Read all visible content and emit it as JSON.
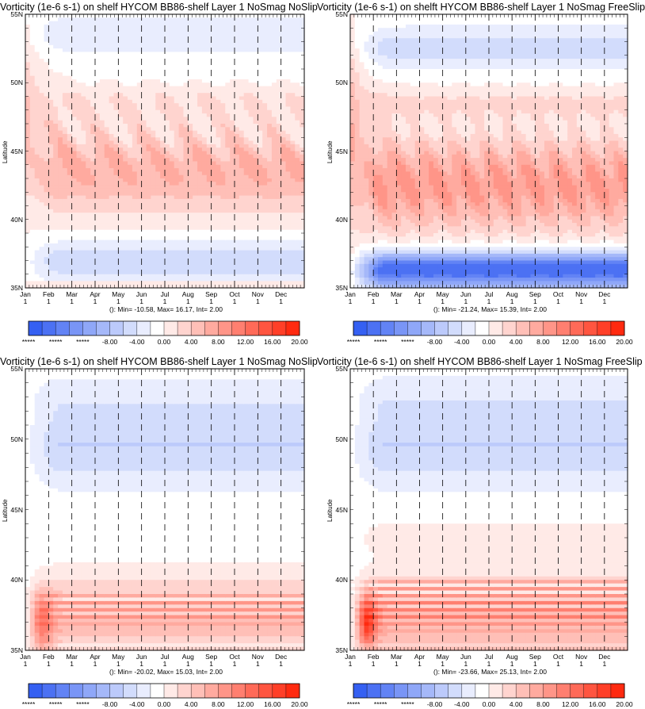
{
  "chart_data": [
    {
      "type": "heatmap",
      "title": "Vorticity (1e-6 s-1) on shelf HYCOM BB86-shelf Layer 1 NoSmag NoSlip",
      "ylabel": "Latitude",
      "xticks": [
        "Jan\n1",
        "Feb\n1",
        "Mar\n1",
        "Apr\n1",
        "May\n1",
        "Jun\n1",
        "Jul\n1",
        "Aug\n1",
        "Sep\n1",
        "Oct\n1",
        "Nov\n1",
        "Dec\n1"
      ],
      "yticks": [
        "35N",
        "40N",
        "45N",
        "50N",
        "55N"
      ],
      "ylim": [
        35,
        55
      ],
      "stats": "(): Min= -10.58, Max= 16.17, Int= 2.00",
      "colorbar_labels": [
        "*****",
        "*****",
        "*****",
        "-8.00",
        "-4.00",
        "0.00",
        "4.00",
        "8.00",
        "12.00",
        "16.00",
        "20.00"
      ],
      "min": -10.58,
      "max": 16.17,
      "interval": 2.0
    },
    {
      "type": "heatmap",
      "title": "Vorticity (1e-6 s-1) on shelft HYCOM BB86-shelf Layer 1 NoSmag FreeSlip",
      "ylabel": "Latitude",
      "xticks": [
        "Jan\n1",
        "Feb\n1",
        "Mar\n1",
        "Apr\n1",
        "May\n1",
        "Jun\n1",
        "Jul\n1",
        "Aug\n1",
        "Sep\n1",
        "Oct\n1",
        "Nov\n1",
        "Dec\n1"
      ],
      "yticks": [
        "35N",
        "40N",
        "45N",
        "50N",
        "55N"
      ],
      "ylim": [
        35,
        55
      ],
      "stats": "(): Min= -21.24, Max= 15.39, Int= 2.00",
      "colorbar_labels": [
        "*****",
        "*****",
        "*****",
        "-8.00",
        "-4.00",
        "0.00",
        "4.00",
        "8.00",
        "12.00",
        "16.00",
        "20.00"
      ],
      "min": -21.24,
      "max": 15.39,
      "interval": 2.0
    },
    {
      "type": "heatmap",
      "title": "Vorticity (1e-6 s-1) on shelf HYCOM BB86-shelf Layer 1 NoSmag NoSlip",
      "ylabel": "Latitude",
      "xticks": [
        "Jan\n1",
        "Feb\n1",
        "Mar\n1",
        "Apr\n1",
        "May\n1",
        "Jun\n1",
        "Jul\n1",
        "Aug\n1",
        "Sep\n1",
        "Oct\n1",
        "Nov\n1",
        "Dec\n1"
      ],
      "yticks": [
        "35N",
        "40N",
        "45N",
        "50N",
        "55N"
      ],
      "ylim": [
        35,
        55
      ],
      "stats": "(): Min= -20.02, Max= 15.03, Int= 2.00",
      "colorbar_labels": [
        "*****",
        "*****",
        "*****",
        "-8.00",
        "-4.00",
        "0.00",
        "4.00",
        "8.00",
        "12.00",
        "16.00",
        "20.00"
      ],
      "min": -20.02,
      "max": 15.03,
      "interval": 2.0
    },
    {
      "type": "heatmap",
      "title": "Vorticity (1e-6 s-1) on shelf HYCOM BB86-shelf Layer 1 NoSmag FreeSlip",
      "ylabel": "Latitude",
      "xticks": [
        "Jan\n1",
        "Feb\n1",
        "Mar\n1",
        "Apr\n1",
        "May\n1",
        "Jun\n1",
        "Jul\n1",
        "Aug\n1",
        "Sep\n1",
        "Oct\n1",
        "Nov\n1",
        "Dec\n1"
      ],
      "yticks": [
        "35N",
        "40N",
        "45N",
        "50N",
        "55N"
      ],
      "ylim": [
        35,
        55
      ],
      "stats": "(): Min= -23.66, Max= 25.13, Int= 2.00",
      "colorbar_labels": [
        "*****",
        "*****",
        "*****",
        "-8.00",
        "-4.00",
        "0.00",
        "4.00",
        "8.00",
        "12.00",
        "16.00",
        "20.00"
      ],
      "min": -23.66,
      "max": 25.13,
      "interval": 2.0
    }
  ],
  "colors": {
    "negative_strong": "#1f4ef0",
    "zero": "#ffffff",
    "positive_strong": "#ff2a10"
  }
}
